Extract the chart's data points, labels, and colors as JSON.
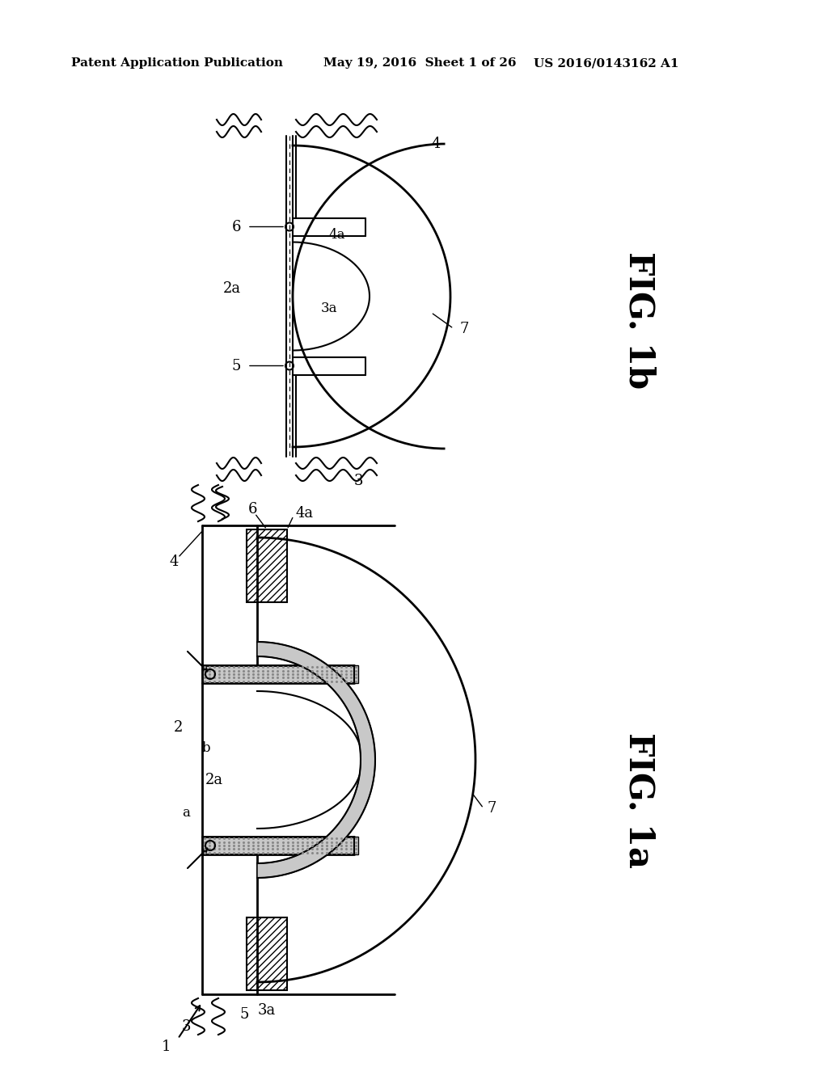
{
  "bg_color": "#ffffff",
  "header_left": "Patent Application Publication",
  "header_mid": "May 19, 2016  Sheet 1 of 26",
  "header_right": "US 2016/0143162 A1",
  "fig1b_label": "FIG. 1b",
  "fig1a_label": "FIG. 1a",
  "lc": "#000000"
}
